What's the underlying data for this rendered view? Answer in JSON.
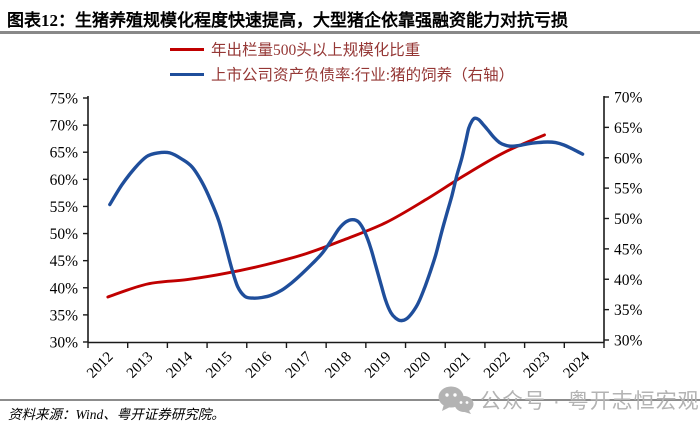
{
  "header": {
    "title": "图表12：生猪养殖规模化程度快速提高，大型猪企依靠强融资能力对抗亏损"
  },
  "legend": {
    "items": [
      {
        "label": "年出栏量500头以上规模化比重",
        "color": "#c00000"
      },
      {
        "label": "上市公司资产负债率:行业:猪的饲养（右轴）",
        "color": "#1f4e9b"
      }
    ]
  },
  "footer": {
    "source": "资料来源：Wind、粤开证券研究院。",
    "watermark_text": "公众号 · 粤开志恒宏观",
    "watermark_icon": "wechat-icon",
    "watermark_color": "#b3b3b3"
  },
  "chart_data": {
    "type": "line",
    "title": "图表12：生猪养殖规模化程度快速提高，大型猪企依靠强融资能力对抗亏损",
    "grid": false,
    "legend_position": "top",
    "x_axis": {
      "tick_labels": [
        "2012",
        "2013",
        "2014",
        "2015",
        "2016",
        "2017",
        "2018",
        "2019",
        "2020",
        "2021",
        "2022",
        "2023",
        "2024"
      ]
    },
    "left_axis": {
      "min": 30,
      "max": 75,
      "step": 5,
      "tick_labels": [
        "75%",
        "70%",
        "65%",
        "60%",
        "55%",
        "50%",
        "45%",
        "40%",
        "35%",
        "30%"
      ]
    },
    "right_axis": {
      "min": 30,
      "max": 70,
      "step": 5,
      "tick_labels": [
        "70%",
        "65%",
        "60%",
        "55%",
        "50%",
        "45%",
        "40%",
        "35%",
        "30%"
      ]
    },
    "series": [
      {
        "name": "年出栏量500头以上规模化比重",
        "axis": "left",
        "color": "#c00000",
        "unit": "%",
        "x": [
          2012,
          2013,
          2014,
          2015,
          2016,
          2017,
          2018,
          2019,
          2020,
          2021,
          2022,
          2023
        ],
        "values": [
          38.3,
          40.7,
          41.5,
          42.7,
          44.3,
          46.3,
          49.0,
          52.0,
          56.2,
          60.8,
          65.0,
          68.2
        ]
      },
      {
        "name": "上市公司资产负债率:行业:猪的饲养（右轴）",
        "axis": "right",
        "color": "#1f4e9b",
        "unit": "%",
        "x": [
          2012.05,
          2012.35,
          2012.68,
          2012.98,
          2013.26,
          2013.56,
          2013.86,
          2014.12,
          2014.37,
          2014.59,
          2014.8,
          2014.97,
          2015.12,
          2015.27,
          2015.45,
          2015.65,
          2015.88,
          2016.13,
          2016.38,
          2016.63,
          2016.89,
          2017.14,
          2017.39,
          2017.62,
          2017.82,
          2017.99,
          2018.17,
          2018.32,
          2018.47,
          2018.62,
          2018.75,
          2018.88,
          2019.0,
          2019.13,
          2019.25,
          2019.38,
          2019.53,
          2019.68,
          2019.83,
          2019.98,
          2020.11,
          2020.26,
          2020.41,
          2020.54,
          2020.67,
          2020.79,
          2020.92,
          2021.02,
          2021.09,
          2021.17,
          2021.24,
          2021.34,
          2021.44,
          2021.57,
          2021.72,
          2021.87,
          2022.0,
          2022.15,
          2022.35,
          2022.58,
          2022.83,
          2023.08,
          2023.28,
          2023.49,
          2023.69,
          2023.84,
          2023.96
        ],
        "values": [
          52.3,
          55.5,
          58.3,
          60.2,
          60.8,
          60.8,
          59.8,
          58.5,
          56.0,
          53.0,
          49.5,
          45.5,
          41.8,
          38.8,
          37.2,
          36.9,
          37.0,
          37.4,
          38.2,
          39.4,
          40.9,
          42.5,
          44.2,
          46.3,
          48.3,
          49.4,
          49.8,
          49.4,
          47.8,
          45.2,
          42.2,
          39.2,
          36.5,
          34.5,
          33.6,
          33.2,
          33.5,
          34.6,
          36.2,
          38.6,
          41.0,
          44.0,
          47.8,
          50.8,
          53.8,
          57.0,
          60.0,
          62.8,
          64.8,
          66.0,
          66.5,
          66.3,
          65.6,
          64.6,
          63.4,
          62.5,
          62.1,
          61.9,
          62.0,
          62.3,
          62.5,
          62.6,
          62.5,
          62.1,
          61.5,
          61.0,
          60.6
        ]
      }
    ]
  }
}
